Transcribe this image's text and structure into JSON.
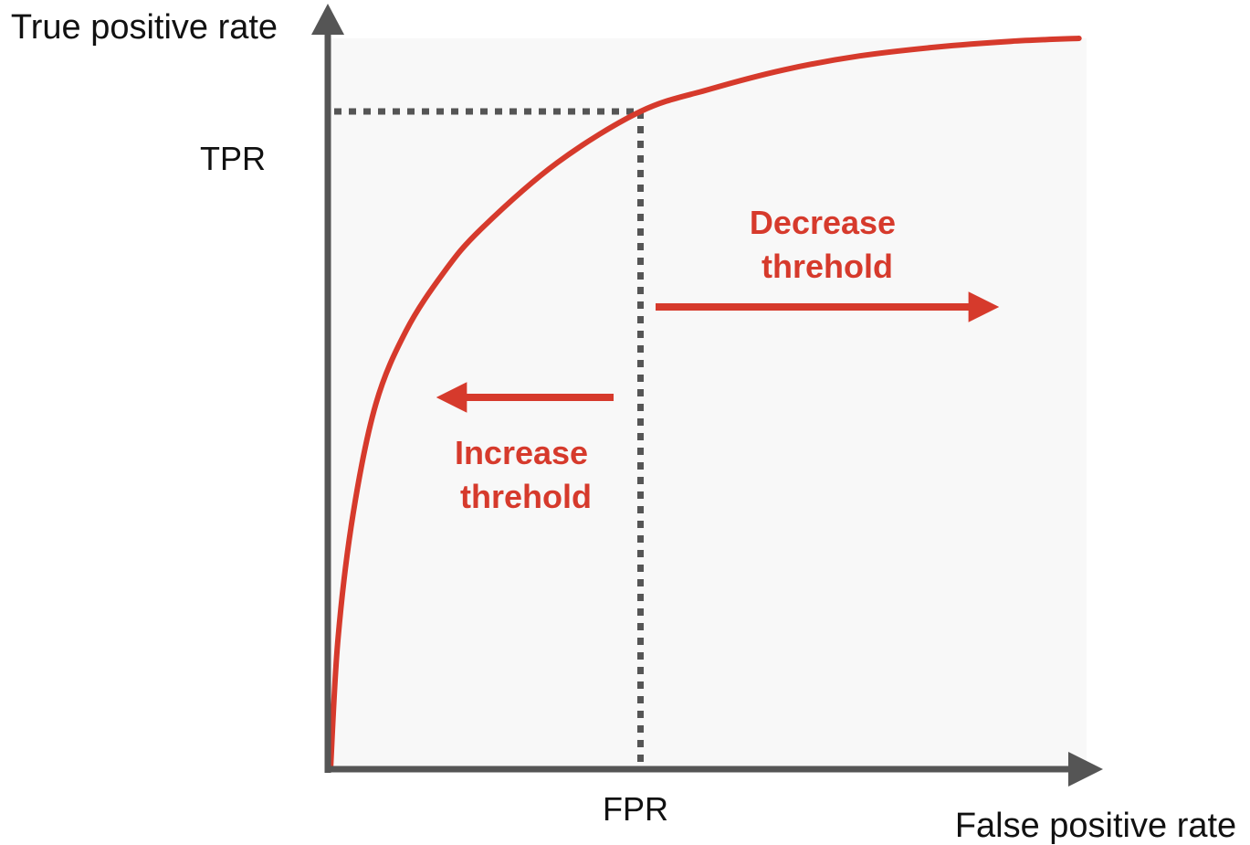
{
  "labels": {
    "y_axis": "True positive rate",
    "x_axis": "False positive rate",
    "tpr_mark": "TPR",
    "fpr_mark": "FPR",
    "decrease": [
      "Decrease",
      "threhold"
    ],
    "increase": [
      "Increase",
      "threhold"
    ]
  },
  "colors": {
    "curve": "#d63a2c",
    "axis": "#555555",
    "guide": "#555555",
    "plot_background": "#f8f8f8",
    "annotation": "#d63a2c"
  },
  "chart_data": {
    "type": "line",
    "xlabel": "False positive rate",
    "ylabel": "True positive rate",
    "xlim": [
      0,
      1
    ],
    "ylim": [
      0,
      1
    ],
    "grid": false,
    "series": [
      {
        "x": [
          0,
          0.01,
          0.03,
          0.06,
          0.1,
          0.15,
          0.2,
          0.3,
          0.41,
          0.5,
          0.6,
          0.7,
          0.8,
          0.9,
          0.99
        ],
        "y": [
          0,
          0.18,
          0.35,
          0.5,
          0.6,
          0.68,
          0.74,
          0.83,
          0.9,
          0.93,
          0.957,
          0.976,
          0.988,
          0.996,
          1.0
        ]
      }
    ],
    "marked_point": {
      "x": 0.41,
      "y": 0.9
    }
  }
}
